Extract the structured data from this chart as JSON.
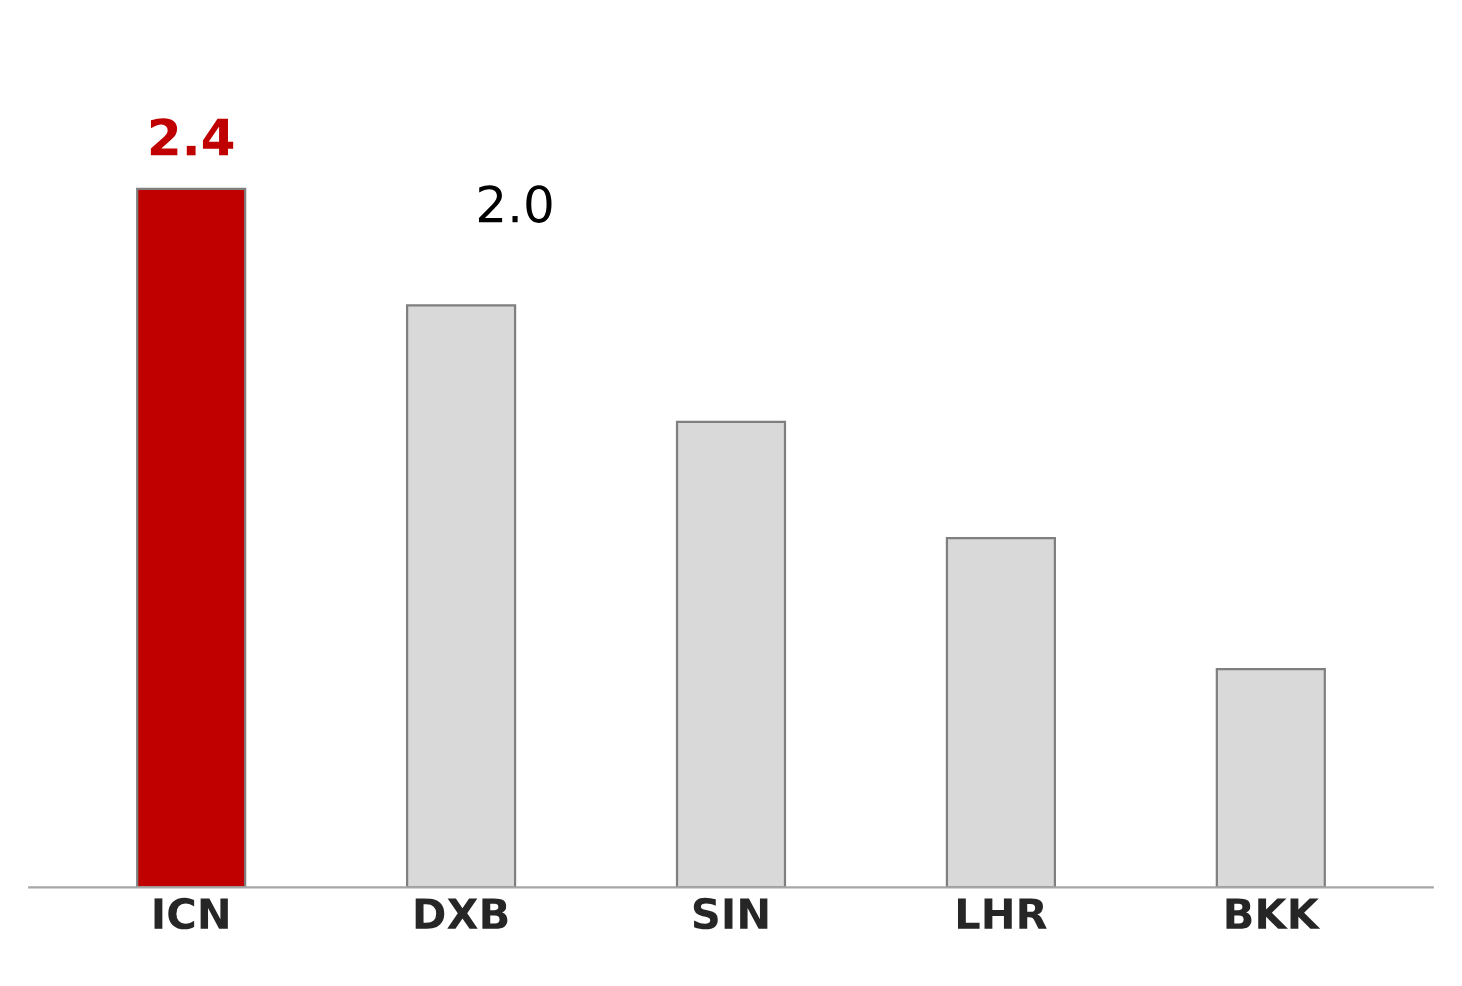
{
  "chart_data": {
    "type": "bar",
    "categories": [
      "ICN",
      "DXB",
      "SIN",
      "LHR",
      "BKK"
    ],
    "values": [
      2.4,
      2.0,
      1.6,
      1.2,
      0.75
    ],
    "colors": [
      "#c00000",
      "#d9d9d9",
      "#d9d9d9",
      "#d9d9d9",
      "#d9d9d9"
    ],
    "value_labels": [
      "2.4",
      "2.0",
      null,
      null,
      null
    ],
    "grid": false,
    "legend": false,
    "tick_labels": "x"
  }
}
